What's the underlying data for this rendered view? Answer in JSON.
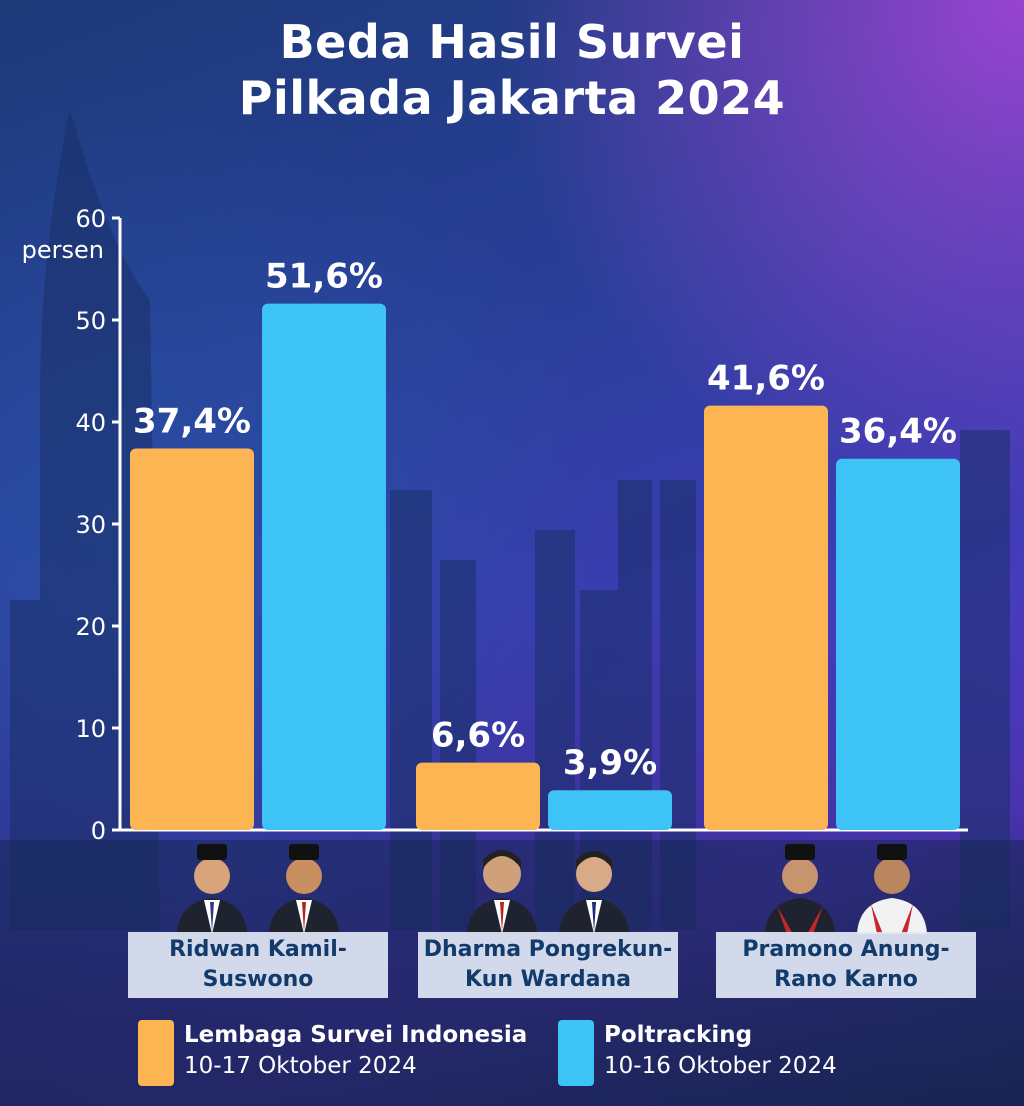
{
  "title_line1": "Beda Hasil Survei",
  "title_line2": "Pilkada Jakarta 2024",
  "colors": {
    "lsi": "#FDB553",
    "poltracking": "#3EC3F7",
    "axis": "#ffffff",
    "label_bg": "#E1E8F5",
    "label_text": "#123A6A"
  },
  "candidates": [
    {
      "line1": "Ridwan Kamil-",
      "line2": "Suswono"
    },
    {
      "line1": "Dharma Pongrekun-",
      "line2": "Kun Wardana"
    },
    {
      "line1": "Pramono Anung-",
      "line2": "Rano Karno"
    }
  ],
  "legend": [
    {
      "org": "Lembaga Survei Indonesia",
      "dates": "10-17 Oktober 2024",
      "color": "#FDB553"
    },
    {
      "org": "Poltracking",
      "dates": "10-16 Oktober 2024",
      "color": "#3EC3F7"
    }
  ],
  "chart_data": {
    "type": "bar",
    "title": "Beda Hasil Survei Pilkada Jakarta 2024",
    "categories": [
      "Ridwan Kamil-Suswono",
      "Dharma Pongrekun-Kun Wardana",
      "Pramono Anung-Rano Karno"
    ],
    "series": [
      {
        "name": "Lembaga Survei Indonesia",
        "values": [
          37.4,
          6.6,
          41.6
        ],
        "labels": [
          "37,4%",
          "6,6%",
          "41,6%"
        ],
        "color": "#FDB553"
      },
      {
        "name": "Poltracking",
        "values": [
          51.6,
          3.9,
          36.4
        ],
        "labels": [
          "51,6%",
          "3,9%",
          "36,4%"
        ],
        "color": "#3EC3F7"
      }
    ],
    "ylabel": "persen",
    "ylim": [
      0,
      60
    ],
    "yticks": [
      0,
      10,
      20,
      30,
      40,
      50,
      60
    ],
    "legend_position": "bottom",
    "grid": false
  }
}
